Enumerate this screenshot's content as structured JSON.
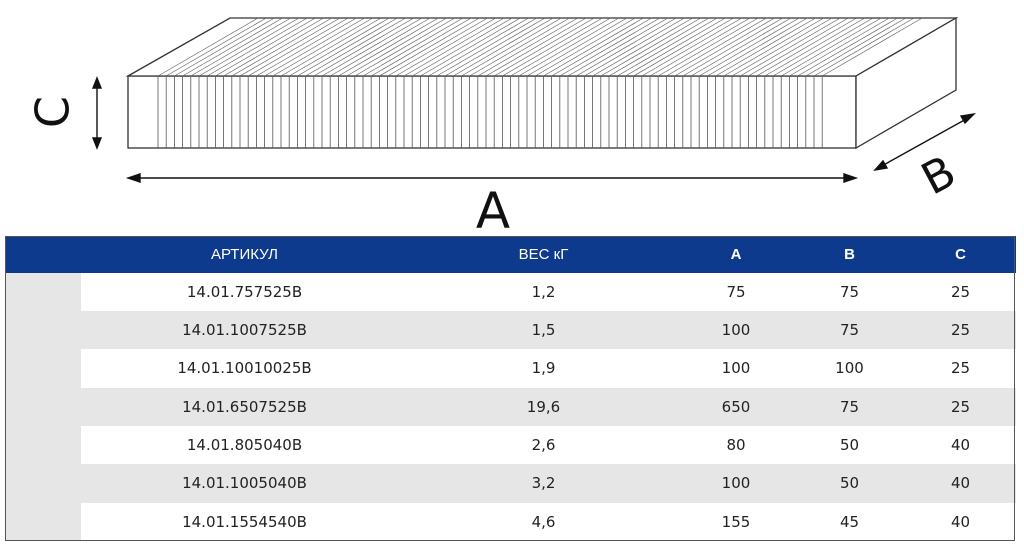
{
  "diagram": {
    "label_a": "A",
    "label_b": "B",
    "label_c": "C"
  },
  "table": {
    "headers": {
      "article": "АРТИКУЛ",
      "weight": "ВЕС кГ",
      "a": "A",
      "b": "B",
      "c": "C"
    },
    "rows": [
      {
        "article": "14.01.757525B",
        "weight": "1,2",
        "a": "75",
        "b": "75",
        "c": "25"
      },
      {
        "article": "14.01.1007525B",
        "weight": "1,5",
        "a": "100",
        "b": "75",
        "c": "25"
      },
      {
        "article": "14.01.10010025B",
        "weight": "1,9",
        "a": "100",
        "b": "100",
        "c": "25"
      },
      {
        "article": "14.01.6507525B",
        "weight": "19,6",
        "a": "650",
        "b": "75",
        "c": "25"
      },
      {
        "article": "14.01.805040B",
        "weight": "2,6",
        "a": "80",
        "b": "50",
        "c": "40"
      },
      {
        "article": "14.01.1005040B",
        "weight": "3,2",
        "a": "100",
        "b": "50",
        "c": "40"
      },
      {
        "article": "14.01.1554540B",
        "weight": "4,6",
        "a": "155",
        "b": "45",
        "c": "40"
      }
    ]
  }
}
